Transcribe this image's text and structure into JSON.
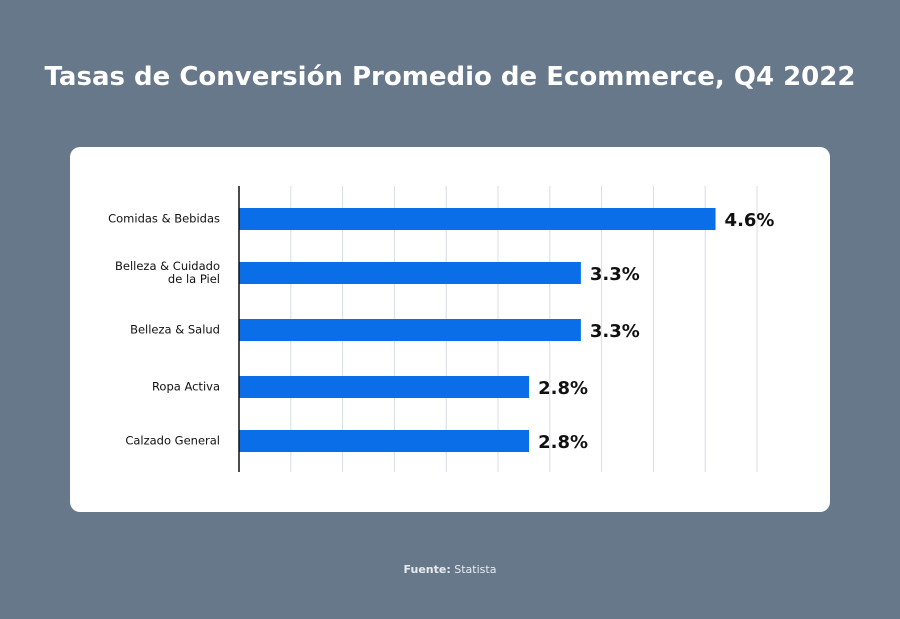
{
  "chart_data": {
    "type": "bar",
    "orientation": "horizontal",
    "title": "Tasas de Conversión Promedio de Ecommerce, Q4 2022",
    "categories": [
      "Comidas & Bebidas",
      "Belleza & Cuidado de la Piel",
      "Belleza & Salud",
      "Ropa Activa",
      "Calzado General"
    ],
    "values": [
      4.6,
      3.3,
      3.3,
      2.8,
      2.8
    ],
    "value_labels": [
      "4.6%",
      "3.3%",
      "3.3%",
      "2.8%",
      "2.8%"
    ],
    "color": "#0a6ee8",
    "xlim": [
      0,
      5
    ],
    "xticks": [
      0,
      0.5,
      1,
      1.5,
      2,
      2.5,
      3,
      3.5,
      4,
      4.5,
      5
    ],
    "grid": true,
    "source_label": "Fuente:",
    "source": "Statista"
  }
}
